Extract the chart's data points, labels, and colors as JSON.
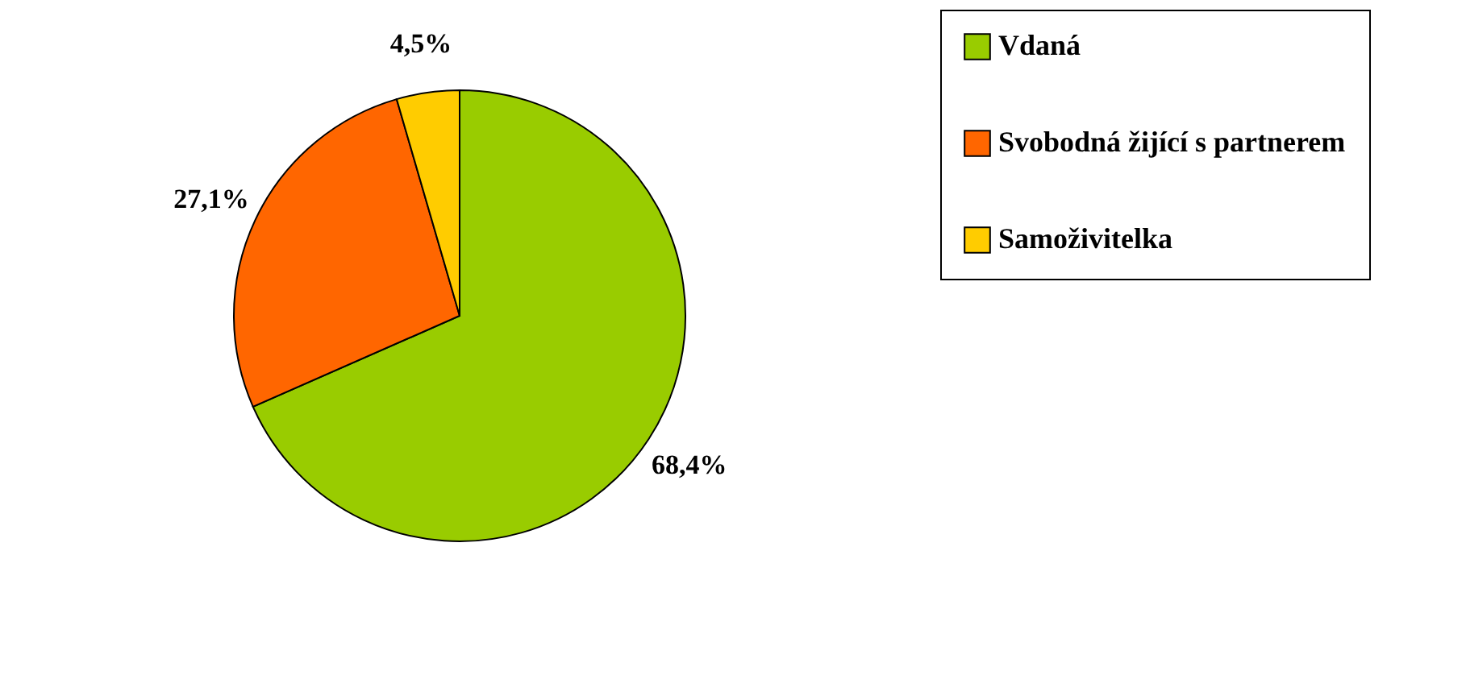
{
  "chart_data": {
    "type": "pie",
    "categories": [
      "Vdaná",
      "Svobodná žijící s partnerem",
      "Samoživitelka"
    ],
    "values": [
      68.4,
      27.1,
      4.5
    ],
    "colors": [
      "#99cc00",
      "#ff6600",
      "#ffcc00"
    ],
    "value_labels": [
      "68,4%",
      "27,1%",
      "4,5%"
    ],
    "legend": "right"
  }
}
